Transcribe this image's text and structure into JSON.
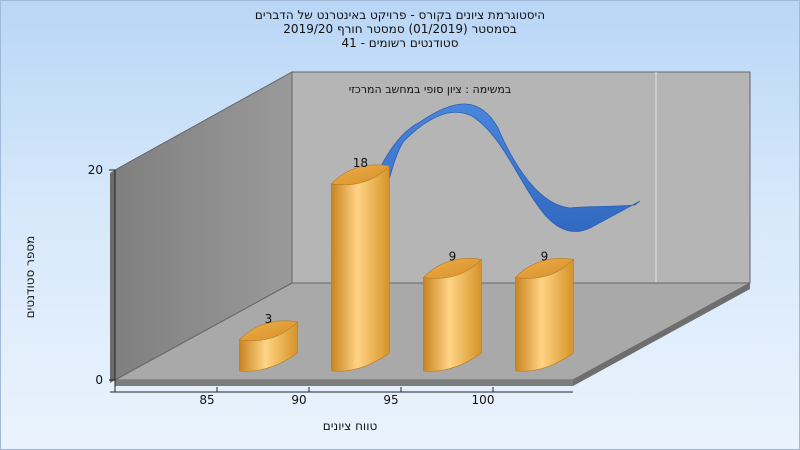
{
  "chart_data": {
    "type": "bar",
    "title_lines": [
      "היסטוגרמת ציונים בקורס - פרויקט באינטרנט של הדברים",
      "בסמסטר  (01/2019)  סמסטר חורף 2019/20",
      "סטודנטים רשומים - 41"
    ],
    "annotation": "במשימה : ציון סופי במחשב המרכזי",
    "xlabel": "טווח ציונים",
    "ylabel": "מספר סטודנטים",
    "x_ticks": [
      "85",
      "90",
      "95",
      "100"
    ],
    "y_ticks": [
      0,
      20
    ],
    "ylim": [
      0,
      20
    ],
    "bars": [
      {
        "x": 86,
        "value": 3,
        "label": "3"
      },
      {
        "x": 91,
        "value": 18,
        "label": "18"
      },
      {
        "x": 96,
        "value": 9,
        "label": "9"
      },
      {
        "x": 101,
        "value": 9,
        "label": "9"
      }
    ],
    "curve": {
      "type": "smoothed distribution ribbon"
    },
    "colors": {
      "bar": "#f2b450",
      "bar_dark": "#d18a22",
      "curve": "#3a78d2",
      "back_wall": "#b4b4b4",
      "left_wall": "#8f8f8f",
      "floor": "#a8a8a8"
    }
  }
}
